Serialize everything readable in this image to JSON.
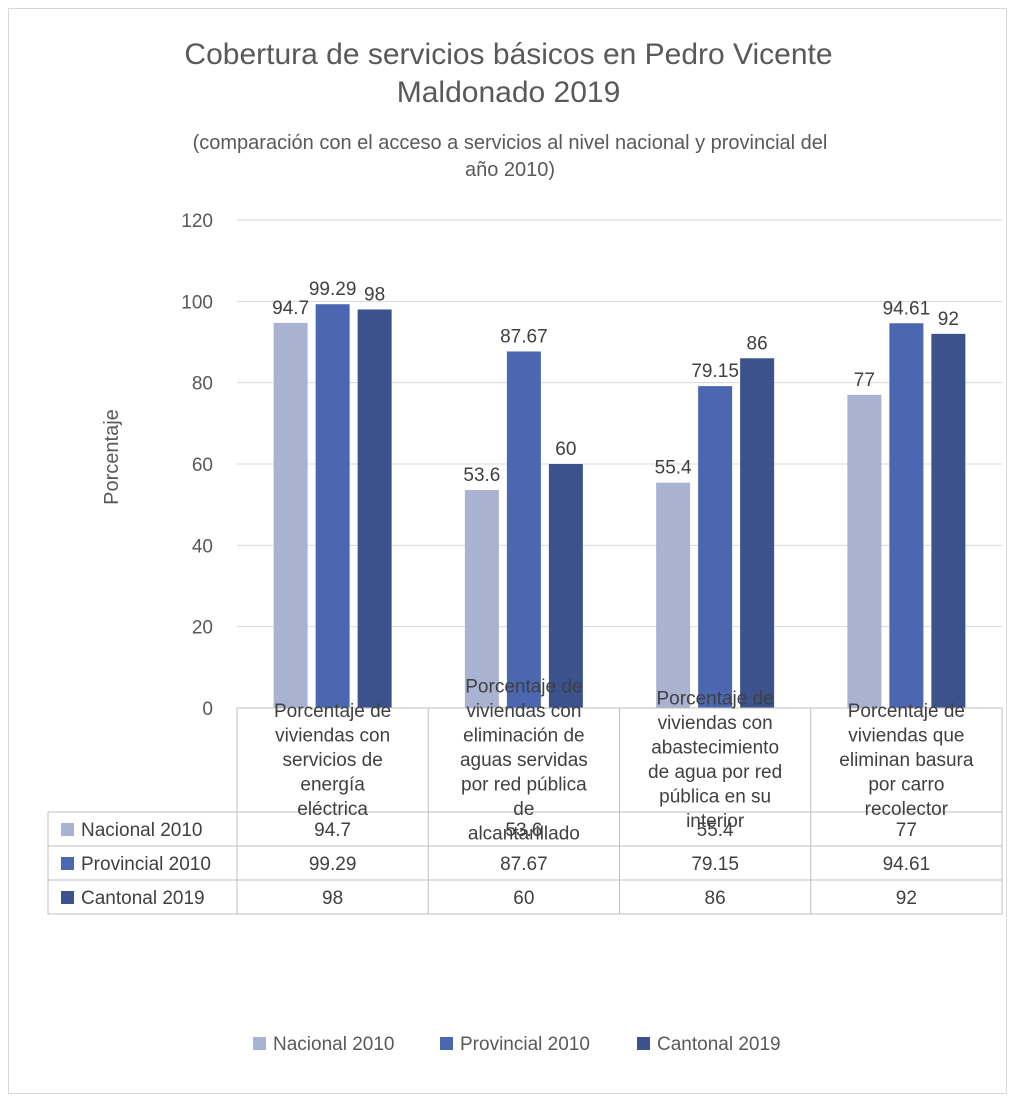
{
  "chart_data": {
    "type": "bar",
    "title": "Cobertura de servicios básicos en Pedro Vicente Maldonado 2019",
    "subtitle": "(comparación con el acceso a servicios al nivel nacional y provincial del año 2010)",
    "ylabel": "Porcentaje",
    "ylim": [
      0,
      120
    ],
    "yticks": [
      "0",
      "20",
      "40",
      "60",
      "80",
      "100",
      "120"
    ],
    "grid": true,
    "legend_position": "bottom",
    "categories": [
      [
        "Porcentaje de",
        "viviendas con",
        "servicios de",
        "energía",
        "eléctrica"
      ],
      [
        "Porcentaje de",
        "viviendas con",
        "eliminación de",
        "aguas servidas",
        "por red pública",
        "de",
        "alcantarillado"
      ],
      [
        "Porcentaje de",
        "viviendas con",
        "abastecimiento",
        "de agua por red",
        "pública en su",
        "interior"
      ],
      [
        "Porcentaje de",
        "viviendas que",
        "eliminan basura",
        "por carro",
        "recolector"
      ]
    ],
    "series": [
      {
        "name": "Nacional 2010",
        "color": "#a9b2d0",
        "values": [
          94.7,
          53.6,
          55.4,
          77
        ],
        "labels": [
          "94.7",
          "53.6",
          "55.4",
          "77"
        ]
      },
      {
        "name": "Provincial 2010",
        "color": "#4a67b0",
        "values": [
          99.29,
          87.67,
          79.15,
          94.61
        ],
        "labels": [
          "99.29",
          "87.67",
          "79.15",
          "94.61"
        ]
      },
      {
        "name": "Cantonal 2019",
        "color": "#3b528c",
        "values": [
          98,
          60,
          86,
          92
        ],
        "labels": [
          "98",
          "60",
          "86",
          "92"
        ]
      }
    ]
  }
}
